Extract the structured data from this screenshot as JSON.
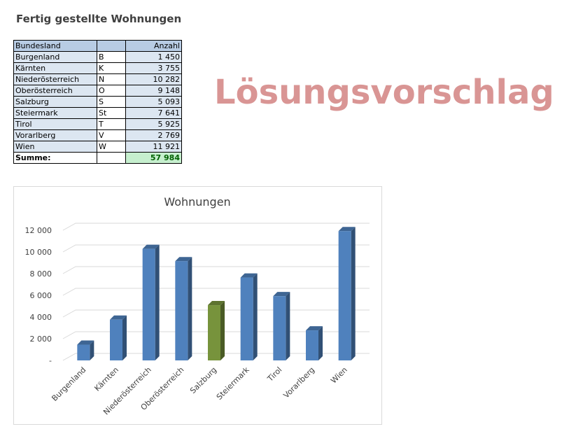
{
  "sheet": {
    "title": "Fertig gestellte Wohnungen",
    "watermark": "Lösungsvorschlag"
  },
  "table": {
    "headers": [
      "Bundesland",
      "",
      "Anzahl"
    ],
    "rows": [
      {
        "name": "Burgenland",
        "code": "B",
        "count": "1 450"
      },
      {
        "name": "Kärnten",
        "code": "K",
        "count": "3 755"
      },
      {
        "name": "Niederösterreich",
        "code": "N",
        "count": "10 282"
      },
      {
        "name": "Oberösterreich",
        "code": "O",
        "count": "9 148"
      },
      {
        "name": "Salzburg",
        "code": "S",
        "count": "5 093"
      },
      {
        "name": "Steiermark",
        "code": "St",
        "count": "7 641"
      },
      {
        "name": "Tirol",
        "code": "T",
        "count": "5 925"
      },
      {
        "name": "Vorarlberg",
        "code": "V",
        "count": "2 769"
      },
      {
        "name": "Wien",
        "code": "W",
        "count": "11 921"
      }
    ],
    "sum_label": "Summe:",
    "sum_value": "57 984"
  },
  "colors": {
    "bar": "#4f81bd",
    "bar_highlight": "#77933c",
    "header_fill": "#b8cce4",
    "row_fill": "#dce6f1",
    "sum_fill": "#c6efce",
    "watermark": "#d99594"
  },
  "chart_data": {
    "type": "bar",
    "title": "Wohnungen",
    "categories": [
      "Burgenland",
      "Kärnten",
      "Niederösterreich",
      "Oberösterreich",
      "Salzburg",
      "Steiermark",
      "Tirol",
      "Vorarlberg",
      "Wien"
    ],
    "values": [
      1450,
      3755,
      10282,
      9148,
      5093,
      7641,
      5925,
      2769,
      11921
    ],
    "highlight_category": "Salzburg",
    "ylim": [
      0,
      12000
    ],
    "yticks": [
      0,
      2000,
      4000,
      6000,
      8000,
      10000,
      12000
    ],
    "ytick_labels": [
      "-",
      "2 000",
      "4 000",
      "6 000",
      "8 000",
      "10 000",
      "12 000"
    ],
    "xlabel": "",
    "ylabel": "",
    "grid": true,
    "legend": "none",
    "style": "3d-column"
  }
}
